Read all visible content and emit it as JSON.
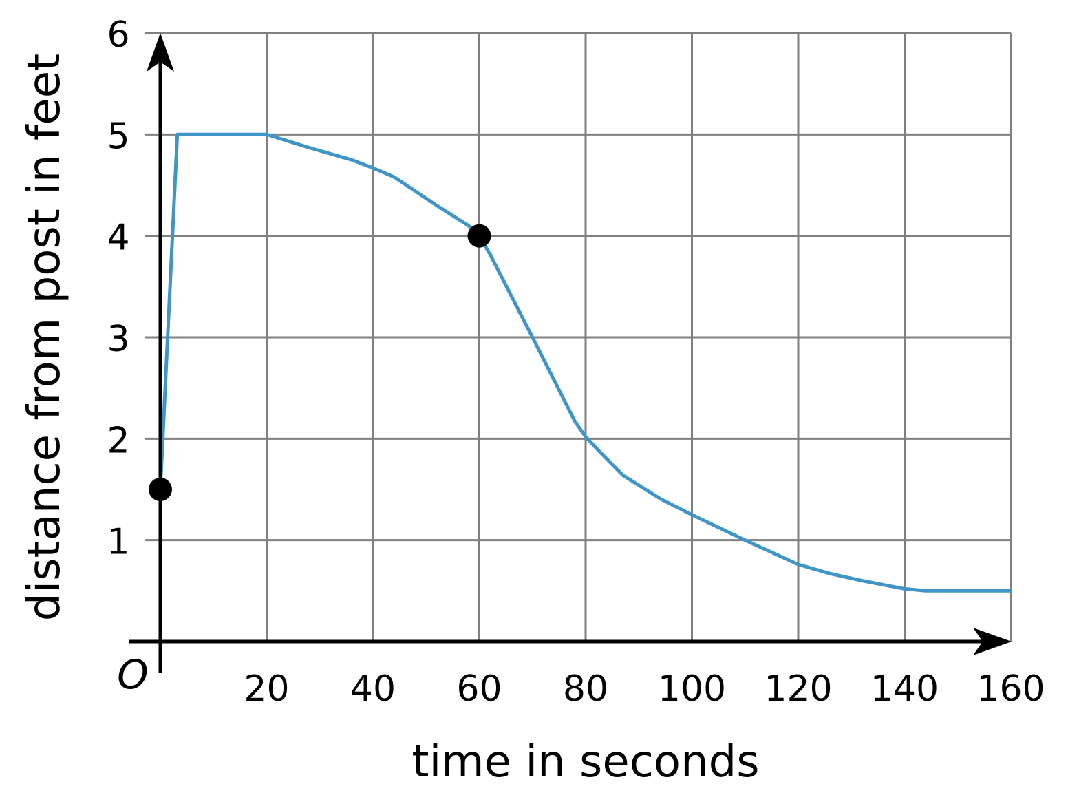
{
  "chart_data": {
    "type": "line",
    "title": "",
    "xlabel": "time in seconds",
    "ylabel": "distance from post in feet",
    "origin_label": "O",
    "xlim": [
      0,
      160
    ],
    "ylim": [
      0,
      6
    ],
    "xticks": [
      20,
      40,
      60,
      80,
      100,
      120,
      140,
      160
    ],
    "yticks": [
      1,
      2,
      3,
      4,
      5,
      6
    ],
    "grid": true,
    "series": [
      {
        "color": "#4095c8",
        "x": [
          0,
          3.2,
          20,
          28,
          36,
          40,
          44,
          52,
          58,
          60,
          62,
          70,
          78,
          80,
          82.5,
          87,
          94,
          100,
          110,
          120,
          126,
          132,
          140,
          144,
          160
        ],
        "y": [
          1.5,
          5,
          5,
          4.87,
          4.75,
          4.67,
          4.58,
          4.3,
          4.1,
          4.0,
          3.82,
          3.0,
          2.17,
          2.02,
          1.88,
          1.64,
          1.41,
          1.25,
          1.0,
          0.76,
          0.67,
          0.6,
          0.52,
          0.5,
          0.5
        ]
      }
    ],
    "points": [
      {
        "x": 0,
        "y": 1.5
      },
      {
        "x": 60,
        "y": 4
      }
    ],
    "point_color": "#000000",
    "grid_color": "#808080"
  }
}
